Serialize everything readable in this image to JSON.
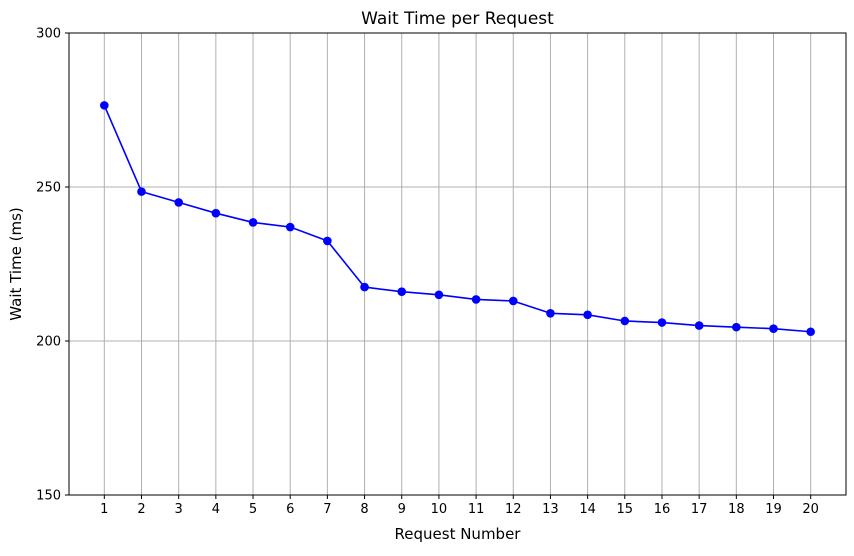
{
  "chart_data": {
    "type": "line",
    "title": "Wait Time per Request",
    "xlabel": "Request Number",
    "ylabel": "Wait Time (ms)",
    "x": [
      1,
      2,
      3,
      4,
      5,
      6,
      7,
      8,
      9,
      10,
      11,
      12,
      13,
      14,
      15,
      16,
      17,
      18,
      19,
      20
    ],
    "series": [
      {
        "values": [
          276.5,
          248.5,
          245.0,
          241.5,
          238.5,
          237.0,
          232.5,
          217.5,
          216.0,
          215.0,
          213.5,
          213.0,
          209.0,
          208.5,
          206.5,
          206.0,
          205.0,
          204.5,
          204.0,
          203.0
        ],
        "color": "#0000ff",
        "marker": "circle"
      }
    ],
    "xlim": [
      0.05,
      20.95
    ],
    "ylim": [
      150,
      300
    ],
    "yticks": [
      150,
      200,
      250,
      300
    ],
    "grid": true,
    "legend": "none"
  }
}
